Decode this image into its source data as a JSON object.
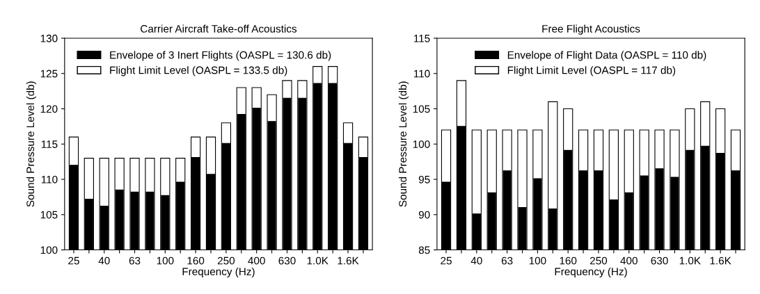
{
  "chart_data": [
    {
      "type": "bar",
      "title": "Carrier Aircraft Take-off Acoustics",
      "xlabel": "Frequency (Hz)",
      "ylabel": "Sound Pressure Level (db)",
      "categories": [
        "25",
        null,
        "40",
        null,
        "63",
        null,
        "100",
        null,
        "160",
        null,
        "250",
        null,
        "400",
        null,
        "630",
        null,
        "1.0K",
        null,
        "1.6K",
        null
      ],
      "series": [
        {
          "name": "Envelope of 3 Inert Flights (OASPL = 130.6 db)",
          "color": "#000000",
          "values": [
            112,
            107.2,
            106.2,
            108.5,
            108.2,
            108.2,
            107.7,
            109.6,
            113.1,
            110.7,
            115.1,
            119.2,
            120.1,
            118.2,
            121.5,
            121.5,
            123.6,
            123.6,
            115.1,
            113.1
          ]
        },
        {
          "name": "Flight Limit Level (OASPL = 133.5 db)",
          "color": "#ffffff",
          "values": [
            116,
            113,
            113,
            113,
            113,
            113,
            113,
            113,
            116,
            116,
            118,
            123,
            123,
            122,
            124,
            124,
            126,
            126,
            118,
            116
          ]
        }
      ],
      "ylim": [
        100,
        130
      ],
      "yticks": [
        100,
        105,
        110,
        115,
        120,
        125,
        130
      ],
      "legend": "top left"
    },
    {
      "type": "bar",
      "title": "Free Flight Acoustics",
      "xlabel": "Frequency (Hz)",
      "ylabel": "Sound Pressure Level (db)",
      "categories": [
        "25",
        null,
        "40",
        null,
        "63",
        null,
        "100",
        null,
        "160",
        null,
        "250",
        null,
        "400",
        null,
        "630",
        null,
        "1.0K",
        null,
        "1.6K",
        null
      ],
      "series": [
        {
          "name": "Envelope of Flight Data (OASPL = 110 db)",
          "color": "#000000",
          "values": [
            94.6,
            102.5,
            90.1,
            93.1,
            96.2,
            91.0,
            95.1,
            90.8,
            99.1,
            96.2,
            96.2,
            92.1,
            93.1,
            95.5,
            96.5,
            95.3,
            99.1,
            99.7,
            98.7,
            96.2
          ]
        },
        {
          "name": "Flight Limit Level (OASPL = 117 db)",
          "color": "#ffffff",
          "values": [
            102,
            109,
            102,
            102,
            102,
            102,
            102,
            106,
            105,
            102,
            102,
            102,
            102,
            102,
            102,
            102,
            105,
            106,
            105,
            102
          ]
        }
      ],
      "ylim": [
        85,
        115
      ],
      "yticks": [
        85,
        90,
        95,
        100,
        105,
        110,
        115
      ],
      "legend": "top"
    }
  ]
}
